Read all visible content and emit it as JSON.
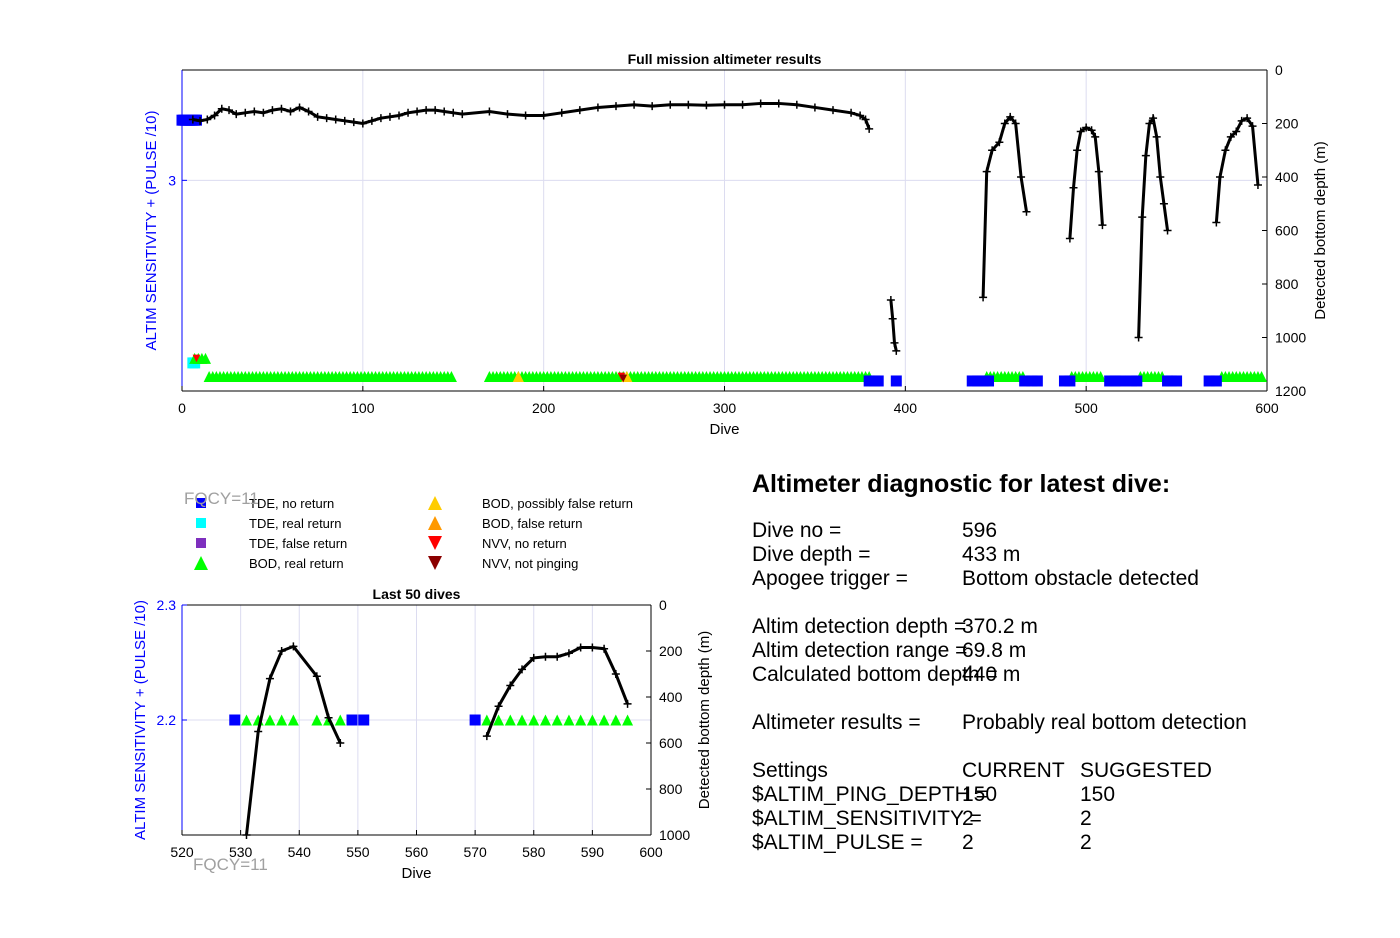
{
  "colors": {
    "axis_left": "#0000ff",
    "axis_right": "#000000",
    "grid": "#dcdcf0",
    "tde_no_return": "#0000ff",
    "tde_real_return": "#00ffff",
    "tde_false_return": "#7e2fbe",
    "bod_real_return": "#00ff00",
    "bod_possibly_false": "#ffcc00",
    "bod_false": "#ff9900",
    "nvv_no_return": "#ff0000",
    "nvv_not_pinging": "#8b0000",
    "depth_line": "#000000",
    "fqcy_text": "#a0a0a0"
  },
  "legend": {
    "items": [
      {
        "label": "TDE, no return",
        "marker": "square",
        "color": "#0000ff"
      },
      {
        "label": "TDE, real return",
        "marker": "square",
        "color": "#00ffff"
      },
      {
        "label": "TDE, false return",
        "marker": "square",
        "color": "#7e2fbe"
      },
      {
        "label": "BOD, real return",
        "marker": "triangle-up",
        "color": "#00ff00"
      },
      {
        "label": "BOD, possibly false return",
        "marker": "triangle-up",
        "color": "#ffcc00"
      },
      {
        "label": "BOD, false return",
        "marker": "triangle-up",
        "color": "#ff9900"
      },
      {
        "label": "NVV, no return",
        "marker": "triangle-down",
        "color": "#ff0000"
      },
      {
        "label": "NVV, not pinging",
        "marker": "triangle-down",
        "color": "#8b0000"
      }
    ]
  },
  "fqcy_label": "FQCY=11",
  "chart_data": [
    {
      "type": "scatter",
      "title": "Full mission altimeter results",
      "xlabel": "Dive",
      "ylabel_left": "ALTIM SENSITIVITY + (PULSE /10)",
      "ylabel_right": "Detected bottom depth (m)",
      "xlim": [
        0,
        600
      ],
      "xticks": [
        0,
        100,
        200,
        300,
        400,
        500,
        600
      ],
      "ylim_left": [
        1.95,
        3.55
      ],
      "yticks_left": [
        3
      ],
      "ylim_right": [
        1200,
        0
      ],
      "yticks_right": [
        0,
        200,
        400,
        600,
        800,
        1000,
        1200
      ],
      "grid": true,
      "depth_segments": [
        {
          "x": [
            6,
            10,
            14,
            18,
            22,
            26,
            30,
            35,
            40,
            45,
            50,
            55,
            60,
            65,
            70,
            75,
            80,
            85,
            90,
            95,
            100,
            105,
            110,
            115,
            120,
            125,
            130,
            135,
            140,
            145,
            150,
            155,
            170,
            180,
            190,
            200,
            210,
            220,
            230,
            240,
            250,
            260,
            270,
            280,
            290,
            300,
            310,
            320,
            330,
            340,
            350,
            360,
            370,
            375,
            378,
            380
          ],
          "y": [
            185,
            190,
            185,
            170,
            145,
            150,
            165,
            160,
            155,
            160,
            150,
            145,
            155,
            140,
            155,
            175,
            180,
            185,
            190,
            195,
            200,
            190,
            180,
            175,
            170,
            160,
            155,
            150,
            150,
            155,
            160,
            165,
            155,
            165,
            170,
            170,
            160,
            150,
            140,
            135,
            130,
            135,
            130,
            130,
            132,
            130,
            130,
            125,
            125,
            130,
            140,
            150,
            160,
            170,
            185,
            220
          ]
        },
        {
          "x": [
            392,
            393,
            394,
            395
          ],
          "y": [
            860,
            930,
            1020,
            1050
          ]
        },
        {
          "x": [
            443,
            445,
            448,
            452,
            455,
            458,
            461,
            464,
            467
          ],
          "y": [
            850,
            380,
            300,
            270,
            200,
            175,
            200,
            400,
            530
          ]
        },
        {
          "x": [
            491,
            493,
            495,
            497,
            500,
            503,
            505,
            507,
            509
          ],
          "y": [
            630,
            440,
            300,
            230,
            215,
            225,
            250,
            380,
            580
          ]
        },
        {
          "x": [
            529,
            531,
            533,
            535,
            537,
            539,
            541,
            543,
            545
          ],
          "y": [
            1000,
            550,
            320,
            200,
            180,
            250,
            400,
            500,
            600
          ]
        },
        {
          "x": [
            572,
            574,
            577,
            580,
            583,
            586,
            589,
            592,
            595
          ],
          "y": [
            570,
            400,
            300,
            250,
            230,
            190,
            180,
            210,
            430
          ]
        }
      ],
      "tde_no_return": {
        "x": [
          0,
          1,
          2,
          3,
          4,
          5,
          6,
          7,
          8,
          380,
          383,
          385,
          395,
          437,
          440,
          443,
          446,
          466,
          470,
          473,
          488,
          491,
          513,
          516,
          519,
          525,
          528,
          545,
          547,
          550,
          568,
          572
        ],
        "y": [
          3.3,
          3.3,
          3.3,
          3.3,
          3.3,
          3.3,
          3.3,
          3.3,
          3.3,
          2.0,
          2.0,
          2.0,
          2.0,
          2.0,
          2.0,
          2.0,
          2.0,
          2.0,
          2.0,
          2.0,
          2.0,
          2.0,
          2.0,
          2.0,
          2.0,
          2.0,
          2.0,
          2.0,
          2.0,
          2.0,
          2.0,
          2.0
        ]
      },
      "tde_real_return": {
        "x": [
          6,
          7
        ],
        "y": [
          2.09,
          2.09
        ]
      },
      "bod_real_return": {
        "x_ranges": [
          [
            15,
            150
          ],
          [
            170,
            380
          ],
          [
            445,
            465
          ],
          [
            492,
            508
          ],
          [
            530,
            543
          ],
          [
            575,
            598
          ]
        ],
        "extra_x": [
          7,
          9,
          11,
          13
        ],
        "extra_y": 2.09,
        "y": 2.0
      },
      "bod_possibly_false": {
        "x": [
          186,
          246
        ],
        "y": [
          2.0,
          2.0
        ]
      },
      "nvv_no_return": {
        "x": [
          8,
          243
        ],
        "y": [
          2.09,
          2.0
        ]
      },
      "nvv_not_pinging": {
        "x": [
          244
        ],
        "y": [
          2.0
        ]
      }
    },
    {
      "type": "scatter",
      "title": "Last 50 dives",
      "xlabel": "Dive",
      "ylabel_left": "ALTIM SENSITIVITY + (PULSE /10)",
      "ylabel_right": "Detected bottom depth (m)",
      "xlim": [
        520,
        600
      ],
      "xticks": [
        520,
        530,
        540,
        550,
        560,
        570,
        580,
        590,
        600
      ],
      "ylim_left": [
        2.1,
        2.3
      ],
      "yticks_left": [
        2.2,
        2.3
      ],
      "ylim_right": [
        1000,
        0
      ],
      "yticks_right": [
        0,
        200,
        400,
        600,
        800,
        1000
      ],
      "grid": true,
      "depth_segments": [
        {
          "x": [
            531,
            533,
            535,
            537,
            539,
            543,
            545,
            547
          ],
          "y": [
            1000,
            550,
            320,
            200,
            180,
            310,
            490,
            600
          ]
        },
        {
          "x": [
            572,
            574,
            576,
            578,
            580,
            582,
            584,
            586,
            588,
            590,
            592,
            594,
            596
          ],
          "y": [
            570,
            440,
            350,
            280,
            230,
            225,
            225,
            210,
            185,
            185,
            190,
            300,
            430
          ]
        }
      ],
      "tde_no_return": {
        "x": [
          529,
          549,
          551,
          570
        ],
        "y": [
          2.2,
          2.2,
          2.2,
          2.2
        ]
      },
      "bod_real_return": {
        "x": [
          531,
          533,
          535,
          537,
          539,
          543,
          545,
          547,
          572,
          574,
          576,
          578,
          580,
          582,
          584,
          586,
          588,
          590,
          592,
          594,
          596
        ],
        "y": 2.2
      }
    }
  ],
  "diagnostic": {
    "title": "Altimeter diagnostic for latest dive:",
    "dive_no_label": "Dive no =",
    "dive_no_value": "596",
    "dive_depth_label": "Dive depth =",
    "dive_depth_value": "433 m",
    "apogee_label": "Apogee trigger =",
    "apogee_value": "Bottom obstacle detected",
    "altim_det_depth_label": "Altim detection depth =",
    "altim_det_depth_value": "370.2 m",
    "altim_det_range_label": "Altim detection range =",
    "altim_det_range_value": "69.8 m",
    "calc_bottom_label": "Calculated bottom depth =",
    "calc_bottom_value": "440 m",
    "results_label": "Altimeter results =",
    "results_value": "Probably real bottom detection",
    "settings_label": "Settings",
    "current_label": "CURRENT",
    "suggested_label": "SUGGESTED",
    "ping_depth_label": "$ALTIM_PING_DEPTH =",
    "ping_depth_current": "150",
    "ping_depth_suggested": "150",
    "sensitivity_label": "$ALTIM_SENSITIVITY =",
    "sensitivity_current": "2",
    "sensitivity_suggested": "2",
    "pulse_label": "$ALTIM_PULSE =",
    "pulse_current": "2",
    "pulse_suggested": "2"
  }
}
